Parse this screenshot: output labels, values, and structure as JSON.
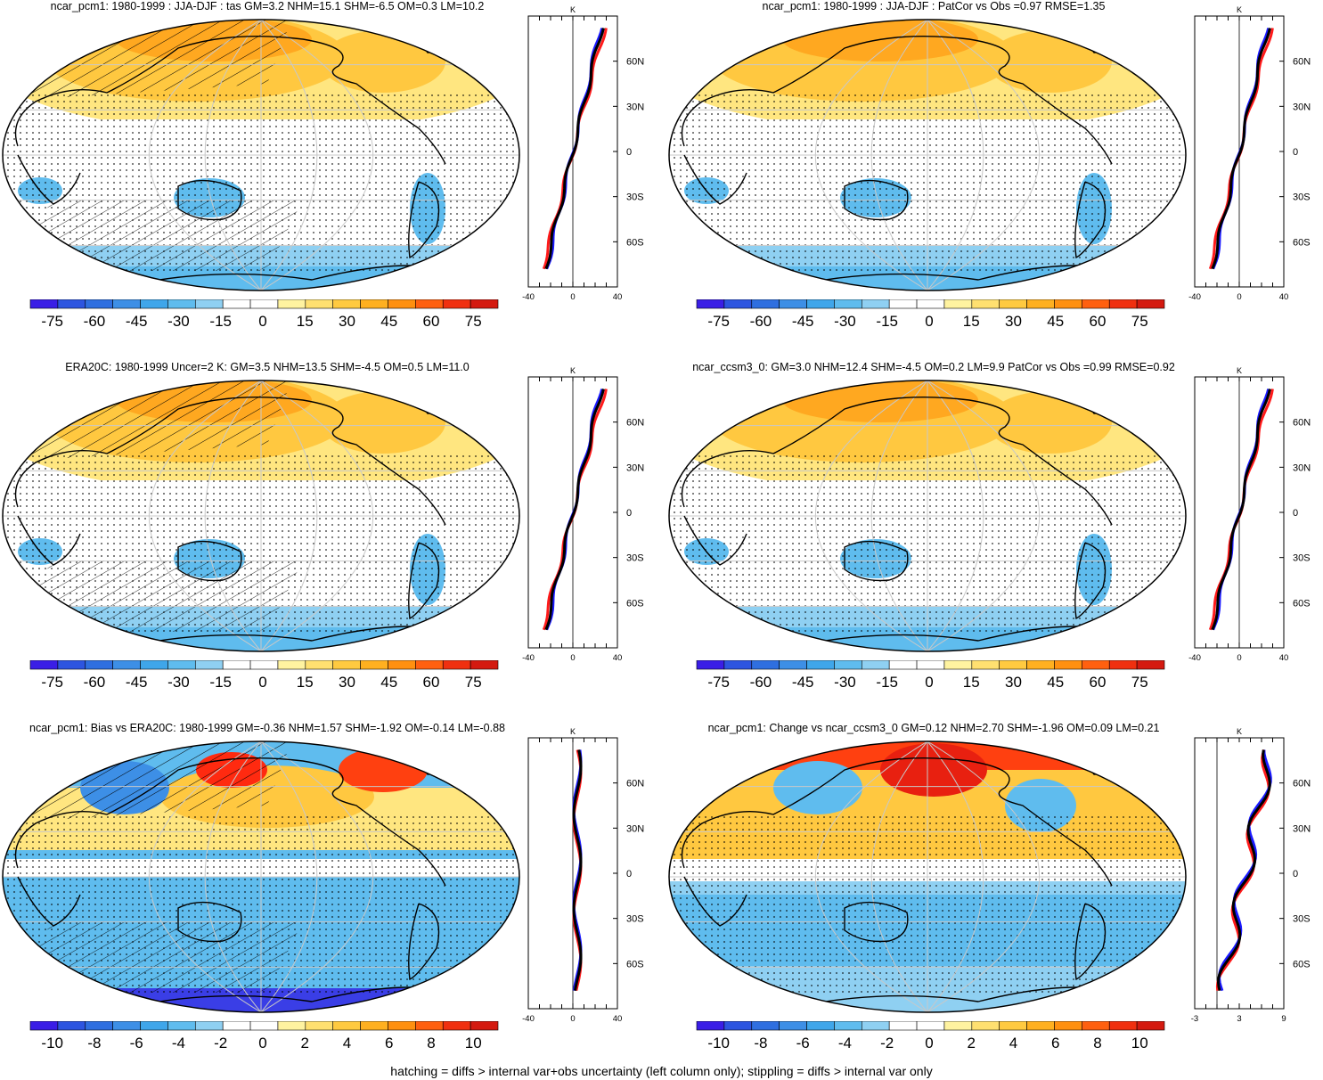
{
  "panels": [
    {
      "id": "p1",
      "title": "ncar_pcm1: 1980-1999 : JJA-DJF : tas GM=3.2 NHM=15.1 SHM=-6.5 OM=0.3 LM=10.2",
      "colorbar": [
        "-75",
        "-60",
        "-45",
        "-30",
        "-15",
        "0",
        "15",
        "30",
        "45",
        "60",
        "75"
      ],
      "profile": {
        "unit": "K",
        "xticks": [
          "-40",
          "0",
          "40"
        ],
        "yticks": [
          "60N",
          "30N",
          "0",
          "30S",
          "60S"
        ]
      },
      "hatching": true
    },
    {
      "id": "p2",
      "title": "ncar_pcm1: 1980-1999 : JJA-DJF : PatCor vs Obs =0.97 RMSE=1.35",
      "colorbar": [
        "-75",
        "-60",
        "-45",
        "-30",
        "-15",
        "0",
        "15",
        "30",
        "45",
        "60",
        "75"
      ],
      "profile": {
        "unit": "K",
        "xticks": [
          "-40",
          "0",
          "40"
        ],
        "yticks": [
          "60N",
          "30N",
          "0",
          "30S",
          "60S"
        ]
      },
      "hatching": false
    },
    {
      "id": "p3",
      "title": "ERA20C: 1980-1999 Uncer=2 K: GM=3.5 NHM=13.5 SHM=-4.5 OM=0.5 LM=11.0",
      "colorbar": [
        "-75",
        "-60",
        "-45",
        "-30",
        "-15",
        "0",
        "15",
        "30",
        "45",
        "60",
        "75"
      ],
      "profile": {
        "unit": "K",
        "xticks": [
          "-40",
          "0",
          "40"
        ],
        "yticks": [
          "60N",
          "30N",
          "0",
          "30S",
          "60S"
        ]
      },
      "hatching": true
    },
    {
      "id": "p4",
      "title": "ncar_ccsm3_0: GM=3.0 NHM=12.4 SHM=-4.5 OM=0.2 LM=9.9 PatCor vs Obs =0.99 RMSE=0.92",
      "colorbar": [
        "-75",
        "-60",
        "-45",
        "-30",
        "-15",
        "0",
        "15",
        "30",
        "45",
        "60",
        "75"
      ],
      "profile": {
        "unit": "K",
        "xticks": [
          "-40",
          "0",
          "40"
        ],
        "yticks": [
          "60N",
          "30N",
          "0",
          "30S",
          "60S"
        ]
      },
      "hatching": false
    },
    {
      "id": "p5",
      "title": "ncar_pcm1: Bias vs ERA20C: 1980-1999 GM=-0.36 NHM=1.57 SHM=-1.92 OM=-0.14 LM=-0.88",
      "colorbar": [
        "-10",
        "-8",
        "-6",
        "-4",
        "-2",
        "0",
        "2",
        "4",
        "6",
        "8",
        "10"
      ],
      "profile": {
        "unit": "K",
        "xticks": [
          "-40",
          "0",
          "40"
        ],
        "yticks": [
          "60N",
          "30N",
          "0",
          "30S",
          "60S"
        ]
      },
      "hatching": true
    },
    {
      "id": "p6",
      "title": "ncar_pcm1: Change vs ncar_ccsm3_0 GM=0.12 NHM=2.70 SHM=-1.96 OM=0.09 LM=0.21",
      "colorbar": [
        "-10",
        "-8",
        "-6",
        "-4",
        "-2",
        "0",
        "2",
        "4",
        "6",
        "8",
        "10"
      ],
      "profile": {
        "unit": "K",
        "xticks": [
          "-3",
          "3",
          "9"
        ],
        "yticks": [
          "60N",
          "30N",
          "0",
          "30S",
          "60S"
        ]
      },
      "hatching": false
    }
  ],
  "footer": "hatching = diffs > internal var+obs uncertainty (left column only); stippling = diffs > internal var only",
  "colors": {
    "scale": [
      "#3a1ee6",
      "#2d55e0",
      "#2f6fe0",
      "#3d8fe6",
      "#3fa6ea",
      "#5fbcee",
      "#8fd0f2",
      "#ffffff",
      "#ffffff",
      "#fff3a0",
      "#ffe070",
      "#ffca40",
      "#ffb020",
      "#ff9010",
      "#ff6010",
      "#f03010",
      "#d41a10"
    ],
    "series": {
      "black": "#000000",
      "blue": "#1a1aff",
      "red": "#ff1a1a"
    }
  }
}
